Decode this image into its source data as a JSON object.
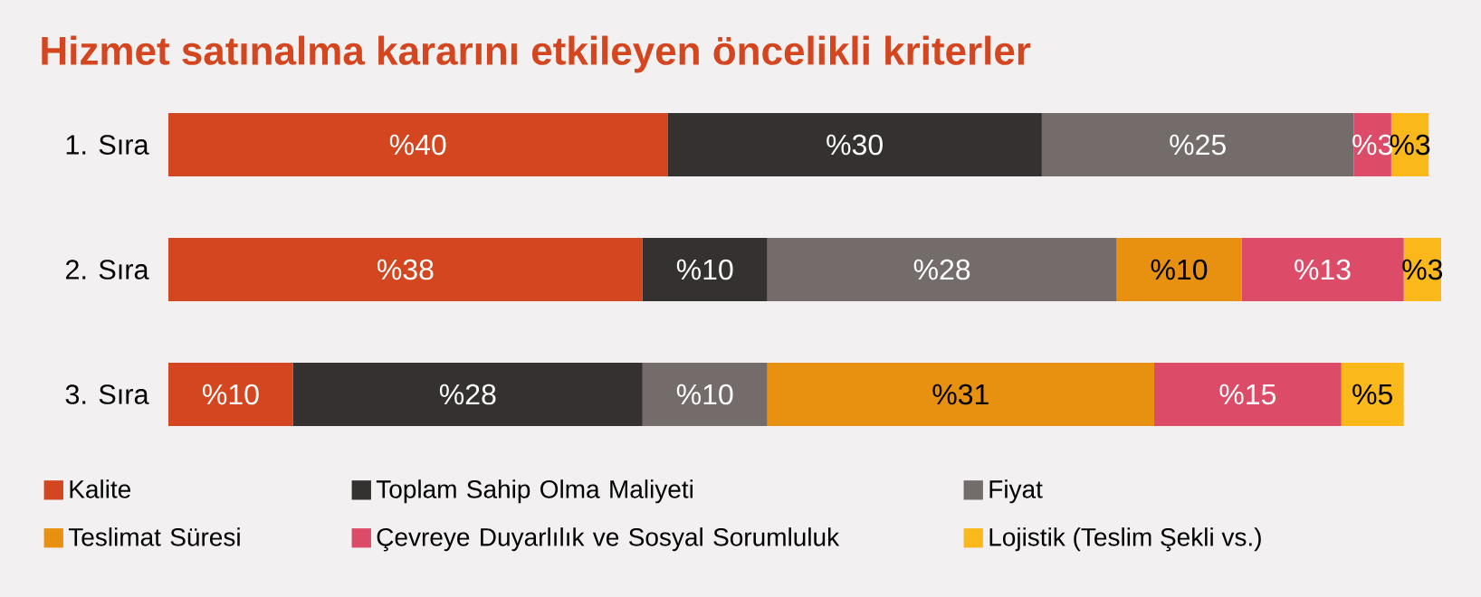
{
  "chart_data": {
    "type": "bar",
    "title": "Hizmet satınalma kararını etkileyen öncelikli kriterler",
    "orientation": "horizontal",
    "stacked": true,
    "categories": [
      "1. Sıra",
      "2. Sıra",
      "3. Sıra"
    ],
    "xlim": [
      0,
      102
    ],
    "tick_labels": "y",
    "legend": "bottom",
    "series": [
      {
        "name": "Kalite",
        "color": "#d4461f",
        "values": [
          40,
          38,
          10
        ],
        "value_labels": [
          "%40",
          "%38",
          "%10"
        ]
      },
      {
        "name": "Toplam Sahip Olma Maliyeti",
        "color": "#343130",
        "values": [
          30,
          10,
          28
        ],
        "value_labels": [
          "%30",
          "%10",
          "%28"
        ]
      },
      {
        "name": "Fiyat",
        "color": "#746c6b",
        "values": [
          25,
          28,
          10
        ],
        "value_labels": [
          "%25",
          "%28",
          "%10"
        ]
      },
      {
        "name": "Teslimat Süresi",
        "color": "#e8900f",
        "values": [
          null,
          10,
          31
        ],
        "value_labels": [
          null,
          "%10",
          "%31"
        ]
      },
      {
        "name": "Çevreye Duyarlılık ve Sosyal Sorumluluk",
        "color": "#dc4c68",
        "values": [
          3,
          13,
          15
        ],
        "value_labels": [
          "%3",
          "%13",
          "%15"
        ]
      },
      {
        "name": "Lojistik (Teslim Şekli vs.)",
        "color": "#fbb81a",
        "values": [
          3,
          3,
          5
        ],
        "value_labels": [
          "%3",
          "%3",
          "%5"
        ]
      }
    ]
  }
}
